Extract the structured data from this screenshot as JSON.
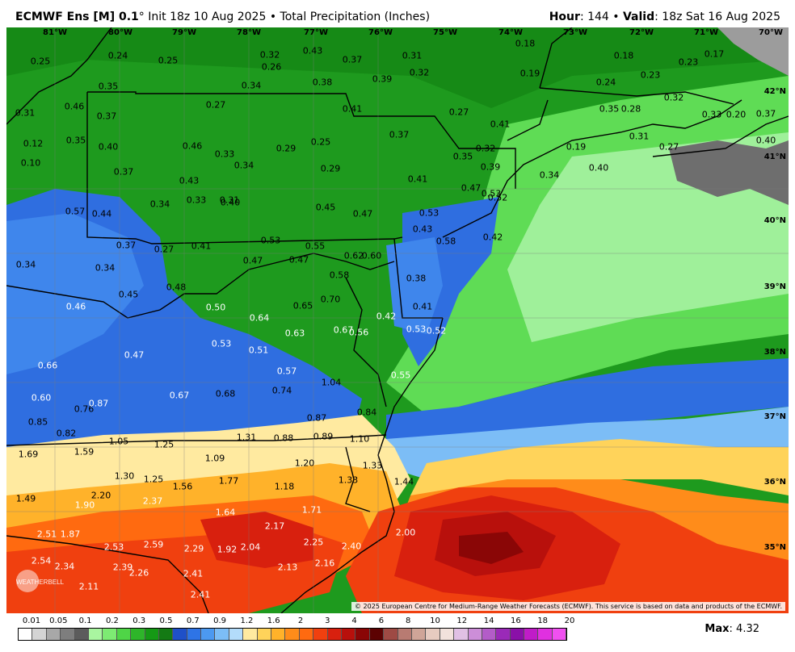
{
  "header": {
    "model": "ECMWF Ens [M] 0.1",
    "degree": "°",
    "init": " Init 18z 10 Aug 2025",
    "sep": " • ",
    "product": "Total Precipitation (Inches)",
    "hour_label": "Hour",
    "hour_value": ": 144 • ",
    "valid_label": "Valid",
    "valid_value": ": 18z Sat 16 Aug 2025"
  },
  "longitudes": [
    "81°W",
    "80°W",
    "79°W",
    "78°W",
    "77°W",
    "76°W",
    "75°W",
    "74°W",
    "73°W",
    "72°W",
    "71°W",
    "70°W"
  ],
  "latitudes": [
    "42°N",
    "41°N",
    "40°N",
    "39°N",
    "38°N",
    "37°N",
    "36°N",
    "35°N"
  ],
  "values": [
    "0.25",
    "0.24",
    "0.25",
    "0.32",
    "0.43",
    "0.37",
    "0.31",
    "0.18",
    "0.18",
    "0.23",
    "0.17",
    "0.26",
    "0.32",
    "0.19",
    "0.23",
    "0.38",
    "0.39",
    "0.35",
    "0.34",
    "0.24",
    "0.27",
    "0.41",
    "0.31",
    "0.46",
    "0.37",
    "0.27",
    "0.41",
    "0.35",
    "0.28",
    "0.32",
    "0.37",
    "0.33",
    "0.20",
    "0.12",
    "0.35",
    "0.40",
    "0.46",
    "0.33",
    "0.29",
    "0.25",
    "0.37",
    "0.34",
    "0.31",
    "0.19",
    "0.27",
    "0.40",
    "0.10",
    "0.37",
    "0.43",
    "0.31",
    "0.29",
    "0.32",
    "0.35",
    "0.39",
    "0.34",
    "0.40",
    "0.41",
    "0.47",
    "0.53",
    "0.52",
    "0.57",
    "0.44",
    "0.34",
    "0.33",
    "0.40",
    "0.45",
    "0.47",
    "0.53",
    "0.43",
    "0.58",
    "0.42",
    "0.37",
    "0.27",
    "0.41",
    "0.53",
    "0.55",
    "0.62",
    "0.34",
    "0.34",
    "0.47",
    "0.47",
    "0.58",
    "0.60",
    "0.38",
    "0.45",
    "0.48",
    "0.65",
    "0.70",
    "0.41",
    "0.46",
    "0.50",
    "0.64",
    "0.42",
    "0.53",
    "0.52",
    "0.47",
    "0.53",
    "0.51",
    "0.63",
    "0.67",
    "0.56",
    "0.66",
    "0.57",
    "0.55",
    "0.60",
    "0.76",
    "0.87",
    "0.67",
    "0.68",
    "0.74",
    "1.04",
    "0.84",
    "0.85",
    "0.87",
    "0.82",
    "1.05",
    "1.25",
    "1.31",
    "0.88",
    "0.89",
    "1.10",
    "1.69",
    "1.59",
    "1.09",
    "1.20",
    "1.33",
    "1.30",
    "1.25",
    "1.77",
    "1.49",
    "1.56",
    "1.18",
    "1.33",
    "1.44",
    "2.20",
    "1.90",
    "2.37",
    "1.71",
    "1.64",
    "2.17",
    "2.51",
    "1.87",
    "2.00",
    "2.25",
    "2.53",
    "2.59",
    "2.29",
    "1.92",
    "2.04",
    "2.40",
    "2.54",
    "2.34",
    "2.39",
    "2.26",
    "2.41",
    "2.16",
    "2.13",
    "2.11",
    "2.41"
  ],
  "copyright": "© 2025 European Centre for Medium-Range Weather Forecasts (ECMWF). This service is based on data and products of the ECMWF.",
  "logo_text": "WEATHERBELL",
  "colorbar": {
    "labels": [
      "0.01",
      "0.05",
      "0.1",
      "0.2",
      "0.3",
      "0.5",
      "0.7",
      "0.9",
      "1.2",
      "1.6",
      "2",
      "3",
      "4",
      "6",
      "8",
      "10",
      "12",
      "14",
      "16",
      "18",
      "20"
    ],
    "colors": [
      "#ffffff",
      "#d4d4d4",
      "#a8a8a8",
      "#7e7e7e",
      "#5c5c5c",
      "#a9f5a0",
      "#7deb73",
      "#4fd547",
      "#2eb52a",
      "#159915",
      "#147a14",
      "#1f50c8",
      "#2e74e6",
      "#4c99f0",
      "#7cbdf6",
      "#b3dcfb",
      "#ffeaa0",
      "#ffd35a",
      "#ffb22a",
      "#ff8c1a",
      "#ff6a10",
      "#f0400f",
      "#d8200e",
      "#b8100c",
      "#8a0606",
      "#5c0202",
      "#9e4a44",
      "#b87b72",
      "#cfa598",
      "#e6cbc0",
      "#f2e2dc",
      "#e0c0e4",
      "#cc8ed8",
      "#b35cc8",
      "#9a2ab8",
      "#8a10a8",
      "#c01cc8",
      "#e030e0",
      "#f050f0"
    ]
  },
  "max_label": "Max",
  "max_value": ": 4.32"
}
